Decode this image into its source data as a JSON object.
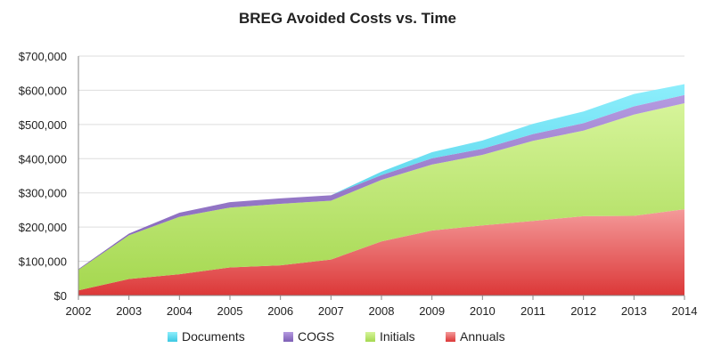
{
  "chart_data": {
    "type": "area",
    "stacked": true,
    "title": "BREG Avoided Costs vs. Time",
    "xlabel": "",
    "ylabel": "",
    "categories": [
      "2002",
      "2003",
      "2004",
      "2005",
      "2006",
      "2007",
      "2008",
      "2009",
      "2010",
      "2011",
      "2012",
      "2013",
      "2014"
    ],
    "ylim": [
      0,
      700000
    ],
    "yticks": [
      0,
      100000,
      200000,
      300000,
      400000,
      500000,
      600000,
      700000
    ],
    "ytick_labels": [
      "$0",
      "$100,000",
      "$200,000",
      "$300,000",
      "$400,000",
      "$500,000",
      "$600,000",
      "$700,000"
    ],
    "grid": true,
    "legend_position": "bottom",
    "series": [
      {
        "name": "Annuals",
        "color": "#e04848",
        "values": [
          15000,
          48000,
          62000,
          82000,
          88000,
          105000,
          158000,
          190000,
          205000,
          218000,
          232000,
          233000,
          252000
        ]
      },
      {
        "name": "Initials",
        "color": "#bde86e",
        "values": [
          60000,
          128000,
          168000,
          175000,
          180000,
          172000,
          180000,
          193000,
          206000,
          234000,
          250000,
          296000,
          310000
        ]
      },
      {
        "name": "COGS",
        "color": "#8e70c0",
        "values": [
          2000,
          5000,
          12000,
          16000,
          16000,
          16000,
          14000,
          18000,
          18000,
          20000,
          22000,
          24000,
          24000
        ]
      },
      {
        "name": "Documents",
        "color": "#4fd8ef",
        "values": [
          0,
          0,
          0,
          0,
          0,
          0,
          10000,
          18000,
          24000,
          30000,
          34000,
          36000,
          32000
        ]
      }
    ],
    "legend_order": [
      "Documents",
      "COGS",
      "Initials",
      "Annuals"
    ]
  }
}
